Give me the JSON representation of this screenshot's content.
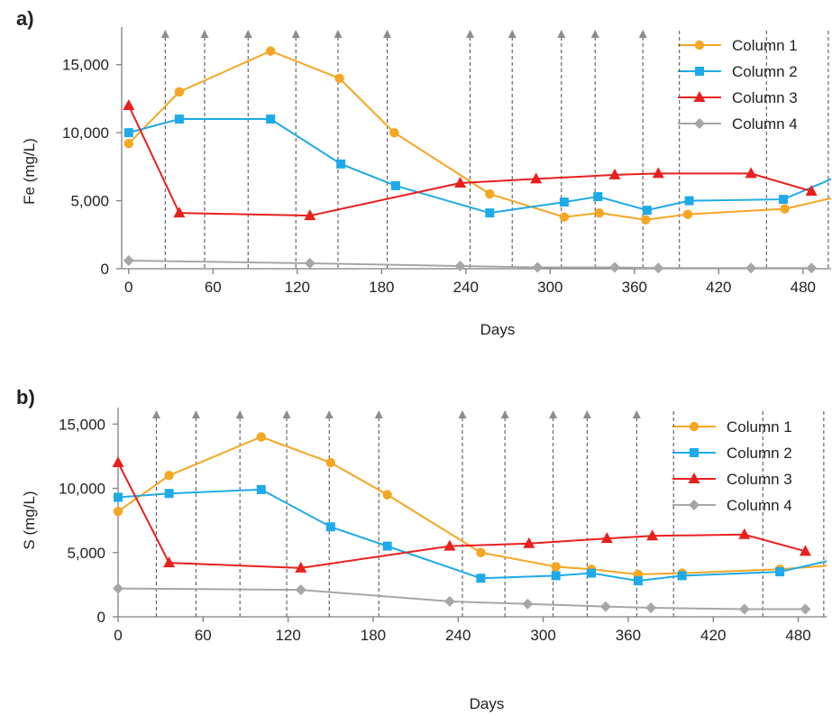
{
  "colors": {
    "column1": "#F5A623",
    "column2": "#1EAAE8",
    "column3": "#E8201E",
    "column4": "#A6A6A6",
    "axis": "#7F7F7F",
    "marker_line": "#595959"
  },
  "chart_data": [
    {
      "type": "line",
      "panel_label": "a)",
      "xlabel": "Days",
      "ylabel": "Fe (mg/L)",
      "xlim": [
        -5,
        500
      ],
      "ylim": [
        0,
        17500
      ],
      "xticks": [
        0,
        60,
        120,
        180,
        240,
        300,
        360,
        420,
        480
      ],
      "yticks": [
        0,
        5000,
        10000,
        15000
      ],
      "xtick_labels": [
        "0",
        "60",
        "120",
        "180",
        "240",
        "300",
        "360",
        "420",
        "480"
      ],
      "ytick_labels": [
        "0",
        "5,000",
        "10,000",
        "15,000"
      ],
      "grid": false,
      "legend_position": "top-right",
      "legend": [
        "Column 1",
        "Column 2",
        "Column 3",
        "Column 4"
      ],
      "event_lines": [
        26,
        54,
        85,
        119,
        149,
        184,
        243,
        273,
        308,
        332,
        366,
        392,
        454,
        498
      ],
      "arrow_events": [
        26,
        54,
        85,
        119,
        149,
        184,
        243,
        273,
        308,
        332,
        366
      ],
      "series": [
        {
          "name": "Column 1",
          "marker": "circle",
          "x": [
            0,
            36,
            101,
            150,
            189,
            257,
            310,
            335,
            368,
            398,
            467,
            505
          ],
          "y": [
            9200,
            13000,
            16000,
            14000,
            10000,
            5500,
            3800,
            4100,
            3600,
            4000,
            4400,
            5300
          ]
        },
        {
          "name": "Column 2",
          "marker": "square",
          "x": [
            0,
            36,
            101,
            151,
            190,
            257,
            310,
            334,
            369,
            399,
            466,
            505
          ],
          "y": [
            10000,
            11000,
            11000,
            7700,
            6100,
            4100,
            4900,
            5300,
            4300,
            5000,
            5100,
            6800
          ]
        },
        {
          "name": "Column 3",
          "marker": "triangle",
          "x": [
            0,
            36,
            129,
            236,
            290,
            346,
            377,
            443,
            486
          ],
          "y": [
            12000,
            4100,
            3900,
            6300,
            6600,
            6900,
            7000,
            7000,
            5700
          ]
        },
        {
          "name": "Column 4",
          "marker": "diamond",
          "x": [
            0,
            129,
            236,
            291,
            346,
            377,
            443,
            486
          ],
          "y": [
            600,
            400,
            200,
            100,
            100,
            50,
            50,
            50
          ]
        }
      ]
    },
    {
      "type": "line",
      "panel_label": "b)",
      "xlabel": "Days",
      "ylabel": "S (mg/L)",
      "xlim": [
        0,
        500
      ],
      "ylim": [
        0,
        16000
      ],
      "xticks": [
        0,
        60,
        120,
        180,
        240,
        300,
        360,
        420,
        480
      ],
      "yticks": [
        0,
        5000,
        10000,
        15000
      ],
      "xtick_labels": [
        "0",
        "60",
        "120",
        "180",
        "240",
        "300",
        "360",
        "420",
        "480"
      ],
      "ytick_labels": [
        "0",
        "5,000",
        "10,000",
        "15,000"
      ],
      "grid": false,
      "legend_position": "top-right",
      "legend": [
        "Column 1",
        "Column 2",
        "Column 3",
        "Column 4"
      ],
      "event_lines": [
        27,
        55,
        86,
        119,
        149,
        184,
        243,
        273,
        307,
        331,
        366,
        392,
        455,
        498
      ],
      "arrow_events": [
        27,
        55,
        86,
        119,
        149,
        184,
        243,
        273,
        307,
        331,
        366
      ],
      "series": [
        {
          "name": "Column 1",
          "marker": "circle",
          "x": [
            0,
            36,
            101,
            150,
            190,
            256,
            309,
            334,
            367,
            398,
            467,
            503
          ],
          "y": [
            8200,
            11000,
            14000,
            12000,
            9500,
            5000,
            3900,
            3700,
            3300,
            3400,
            3700,
            4000
          ]
        },
        {
          "name": "Column 2",
          "marker": "square",
          "x": [
            0,
            36,
            101,
            150,
            190,
            256,
            309,
            334,
            367,
            398,
            467,
            503
          ],
          "y": [
            9300,
            9600,
            9900,
            7000,
            5500,
            3000,
            3200,
            3400,
            2800,
            3200,
            3500,
            4400
          ]
        },
        {
          "name": "Column 3",
          "marker": "triangle",
          "x": [
            0,
            36,
            129,
            234,
            290,
            345,
            377,
            442,
            485
          ],
          "y": [
            12000,
            4200,
            3800,
            5500,
            5700,
            6100,
            6300,
            6400,
            5100
          ]
        },
        {
          "name": "Column 4",
          "marker": "diamond",
          "x": [
            0,
            129,
            234,
            289,
            344,
            376,
            442,
            485
          ],
          "y": [
            2200,
            2100,
            1200,
            1000,
            800,
            700,
            600,
            600
          ]
        }
      ]
    }
  ]
}
